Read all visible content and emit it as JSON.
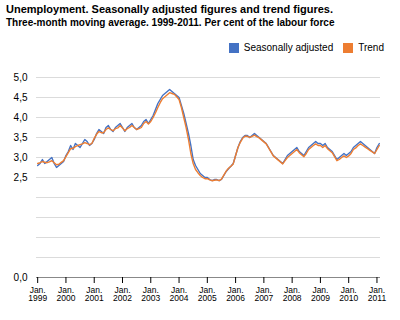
{
  "chart_data": {
    "type": "line",
    "title": "Unemployment. Seasonally adjusted figures and trend figures.",
    "subtitle": "Three-month moving average. 1999-2011. Per cent of the labour force",
    "categories": [
      "Jan.\n1999",
      null,
      null,
      null,
      null,
      null,
      null,
      null,
      null,
      null,
      null,
      null,
      "Jan.\n2000",
      null,
      null,
      null,
      null,
      null,
      null,
      null,
      null,
      null,
      null,
      null,
      "Jan.\n2001",
      null,
      null,
      null,
      null,
      null,
      null,
      null,
      null,
      null,
      null,
      null,
      "Jan.\n2002",
      null,
      null,
      null,
      null,
      null,
      null,
      null,
      null,
      null,
      null,
      null,
      "Jan.\n2003",
      null,
      null,
      null,
      null,
      null,
      null,
      null,
      null,
      null,
      null,
      null,
      "Jan.\n2004",
      null,
      null,
      null,
      null,
      null,
      null,
      null,
      null,
      null,
      null,
      null,
      "Jan.\n2005",
      null,
      null,
      null,
      null,
      null,
      null,
      null,
      null,
      null,
      null,
      null,
      "Jan.\n2006",
      null,
      null,
      null,
      null,
      null,
      null,
      null,
      null,
      null,
      null,
      null,
      "Jan.\n2007",
      null,
      null,
      null,
      null,
      null,
      null,
      null,
      null,
      null,
      null,
      null,
      "Jan.\n2008",
      null,
      null,
      null,
      null,
      null,
      null,
      null,
      null,
      null,
      null,
      null,
      "Jan.\n2009",
      null,
      null,
      null,
      null,
      null,
      null,
      null,
      null,
      null,
      null,
      null,
      "Jan.\n2010",
      null,
      null,
      null,
      null,
      null,
      null,
      null,
      null,
      null,
      null,
      null,
      "Jan.\n2011",
      null
    ],
    "series": [
      {
        "name": "Seasonally adjusted",
        "color": "#4472C4",
        "values": [
          2.8,
          2.85,
          2.95,
          2.85,
          2.9,
          2.95,
          3.0,
          2.85,
          2.75,
          2.8,
          2.85,
          2.9,
          3.05,
          3.15,
          3.3,
          3.2,
          3.35,
          3.3,
          3.25,
          3.35,
          3.45,
          3.4,
          3.3,
          3.35,
          3.45,
          3.6,
          3.7,
          3.65,
          3.6,
          3.75,
          3.8,
          3.7,
          3.65,
          3.75,
          3.8,
          3.85,
          3.75,
          3.65,
          3.75,
          3.8,
          3.85,
          3.75,
          3.7,
          3.75,
          3.8,
          3.9,
          3.95,
          3.85,
          3.95,
          4.05,
          4.2,
          4.35,
          4.45,
          4.55,
          4.6,
          4.65,
          4.7,
          4.65,
          4.6,
          4.55,
          4.5,
          4.3,
          4.1,
          3.85,
          3.6,
          3.3,
          2.95,
          2.8,
          2.7,
          2.6,
          2.55,
          2.5,
          2.5,
          2.45,
          2.42,
          2.45,
          2.45,
          2.42,
          2.45,
          2.55,
          2.65,
          2.72,
          2.78,
          2.85,
          3.05,
          3.25,
          3.4,
          3.5,
          3.55,
          3.55,
          3.5,
          3.55,
          3.6,
          3.55,
          3.5,
          3.45,
          3.4,
          3.35,
          3.25,
          3.15,
          3.05,
          3.0,
          2.95,
          2.9,
          2.85,
          2.95,
          3.05,
          3.1,
          3.15,
          3.2,
          3.25,
          3.15,
          3.1,
          3.05,
          3.15,
          3.25,
          3.3,
          3.35,
          3.4,
          3.35,
          3.35,
          3.3,
          3.35,
          3.25,
          3.2,
          3.15,
          3.05,
          2.95,
          3.0,
          3.05,
          3.1,
          3.05,
          3.1,
          3.15,
          3.25,
          3.3,
          3.35,
          3.4,
          3.35,
          3.3,
          3.25,
          3.2,
          3.15,
          3.1,
          3.25,
          3.35
        ]
      },
      {
        "name": "Trend",
        "color": "#ED7D31",
        "values": [
          2.85,
          2.87,
          2.9,
          2.88,
          2.87,
          2.89,
          2.92,
          2.87,
          2.82,
          2.83,
          2.88,
          2.92,
          3.02,
          3.12,
          3.22,
          3.23,
          3.27,
          3.3,
          3.32,
          3.34,
          3.37,
          3.35,
          3.32,
          3.35,
          3.48,
          3.58,
          3.65,
          3.62,
          3.62,
          3.7,
          3.74,
          3.7,
          3.67,
          3.72,
          3.74,
          3.8,
          3.74,
          3.67,
          3.72,
          3.75,
          3.8,
          3.75,
          3.7,
          3.72,
          3.75,
          3.85,
          3.9,
          3.84,
          3.9,
          4.0,
          4.12,
          4.25,
          4.37,
          4.47,
          4.52,
          4.57,
          4.62,
          4.6,
          4.58,
          4.52,
          4.45,
          4.25,
          4.0,
          3.75,
          3.45,
          3.1,
          2.85,
          2.7,
          2.62,
          2.55,
          2.5,
          2.47,
          2.47,
          2.44,
          2.42,
          2.43,
          2.44,
          2.42,
          2.46,
          2.56,
          2.66,
          2.73,
          2.78,
          2.84,
          3.05,
          3.25,
          3.38,
          3.48,
          3.53,
          3.53,
          3.5,
          3.53,
          3.56,
          3.52,
          3.49,
          3.44,
          3.39,
          3.34,
          3.24,
          3.14,
          3.04,
          2.99,
          2.94,
          2.89,
          2.84,
          2.92,
          3.0,
          3.05,
          3.1,
          3.15,
          3.2,
          3.12,
          3.07,
          3.02,
          3.1,
          3.2,
          3.25,
          3.3,
          3.34,
          3.3,
          3.3,
          3.25,
          3.3,
          3.22,
          3.17,
          3.12,
          3.02,
          2.92,
          2.95,
          3.0,
          3.04,
          3.0,
          3.04,
          3.1,
          3.2,
          3.24,
          3.3,
          3.34,
          3.3,
          3.26,
          3.22,
          3.18,
          3.14,
          3.1,
          3.2,
          3.3
        ]
      }
    ],
    "ylim": [
      0.0,
      5.0
    ],
    "yticks": [
      {
        "value": 0.0,
        "label": "0,0"
      },
      {
        "value": 0.5,
        "label": ""
      },
      {
        "value": 1.0,
        "label": ""
      },
      {
        "value": 1.5,
        "label": ""
      },
      {
        "value": 2.0,
        "label": ""
      },
      {
        "value": 2.5,
        "label": "2,5"
      },
      {
        "value": 3.0,
        "label": "3,0"
      },
      {
        "value": 3.5,
        "label": "3,5"
      },
      {
        "value": 4.0,
        "label": "4,0"
      },
      {
        "value": 4.5,
        "label": "4,5"
      },
      {
        "value": 5.0,
        "label": "5,0"
      }
    ],
    "grid": true,
    "legend": "upper right"
  }
}
